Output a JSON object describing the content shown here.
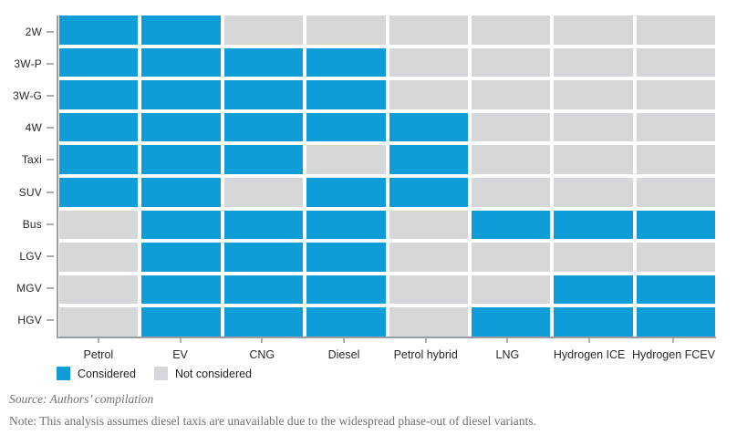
{
  "chart_data": {
    "type": "heatmap",
    "title": "",
    "columns": [
      "Petrol",
      "EV",
      "CNG",
      "Diesel",
      "Petrol hybrid",
      "LNG",
      "Hydrogen ICE",
      "Hydrogen FCEV"
    ],
    "rows": [
      "2W",
      "3W-P",
      "3W-G",
      "4W",
      "Taxi",
      "SUV",
      "Bus",
      "LGV",
      "MGV",
      "HGV"
    ],
    "values": [
      [
        1,
        1,
        0,
        0,
        0,
        0,
        0,
        0
      ],
      [
        1,
        1,
        1,
        1,
        0,
        0,
        0,
        0
      ],
      [
        1,
        1,
        1,
        1,
        0,
        0,
        0,
        0
      ],
      [
        1,
        1,
        1,
        1,
        1,
        0,
        0,
        0
      ],
      [
        1,
        1,
        1,
        0,
        1,
        0,
        0,
        0
      ],
      [
        1,
        1,
        0,
        1,
        1,
        0,
        0,
        0
      ],
      [
        0,
        1,
        1,
        1,
        0,
        1,
        1,
        1
      ],
      [
        0,
        1,
        1,
        1,
        0,
        0,
        0,
        0
      ],
      [
        0,
        1,
        1,
        1,
        0,
        0,
        1,
        1
      ],
      [
        0,
        1,
        1,
        1,
        0,
        1,
        1,
        1
      ]
    ],
    "legend": [
      {
        "label": "Considered",
        "value": 1,
        "color": "#109cd6"
      },
      {
        "label": "Not considered",
        "value": 0,
        "color": "#d5d7da"
      }
    ],
    "legend_position": "bottom-left",
    "grid": false,
    "xlabel": "",
    "ylabel": ""
  },
  "colors": {
    "considered": "#109cd6",
    "not_considered": "#d5d7da",
    "axis_line": "#989ea4",
    "tick": "#aab0b5",
    "label_text": "#27292c",
    "footer_text": "#6d7276"
  },
  "footer": {
    "source": "Source: Authors’ compilation",
    "note": "Note: This analysis assumes diesel taxis are unavailable due to the widespread phase-out of diesel variants."
  }
}
